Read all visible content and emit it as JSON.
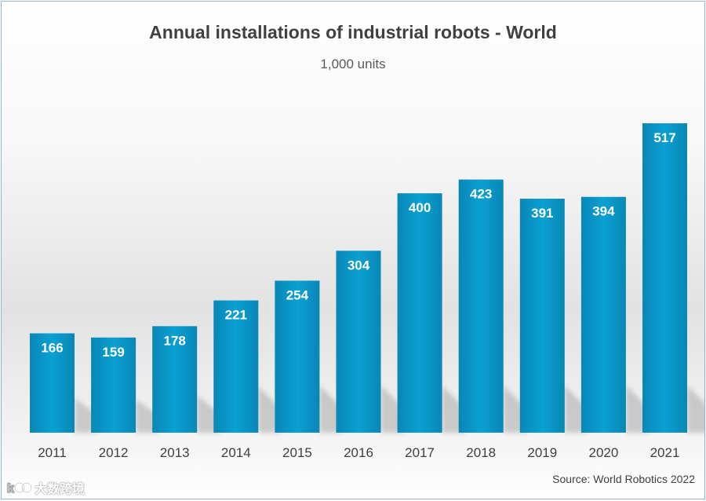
{
  "chart_data": {
    "type": "bar",
    "title": "Annual installations of industrial robots - World",
    "subtitle": "1,000 units",
    "categories": [
      "2011",
      "2012",
      "2013",
      "2014",
      "2015",
      "2016",
      "2017",
      "2018",
      "2019",
      "2020",
      "2021"
    ],
    "values": [
      166,
      159,
      178,
      221,
      254,
      304,
      400,
      423,
      391,
      394,
      517
    ],
    "xlabel": "",
    "ylabel": "",
    "ylim": [
      0,
      517
    ],
    "grid": false,
    "legend": "none",
    "bar_color": "#0a9bcd",
    "source": "Source: World Robotics 2022"
  },
  "watermark": {
    "text": "大数跨境"
  }
}
